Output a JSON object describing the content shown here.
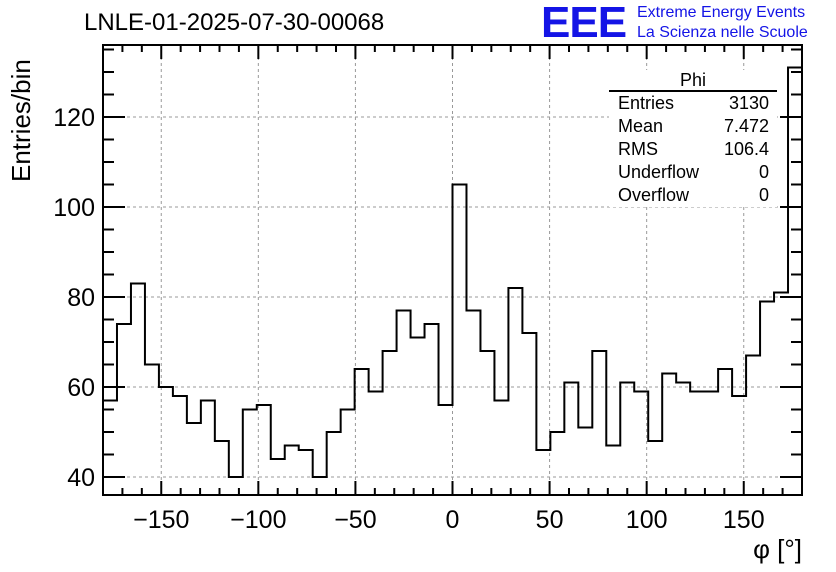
{
  "title": "LNLE-01-2025-07-30-00068",
  "logo": {
    "mark": "EEE",
    "line1": "Extreme Energy Events",
    "line2": "La Scienza nelle Scuole",
    "color": "#1414e6"
  },
  "stats": {
    "name": "Phi",
    "rows": [
      {
        "label": "Entries",
        "value": "3130"
      },
      {
        "label": "Mean",
        "value": "7.472"
      },
      {
        "label": "RMS",
        "value": "106.4"
      },
      {
        "label": "Underflow",
        "value": "0"
      },
      {
        "label": "Overflow",
        "value": "0"
      }
    ]
  },
  "chart_data": {
    "type": "histogram",
    "title": "LNLE-01-2025-07-30-00068",
    "xlabel": "φ [°]",
    "ylabel": "Entries/bin",
    "xlim": [
      -180,
      180
    ],
    "ylim": [
      36,
      136
    ],
    "grid": true,
    "bin_width": 7.2,
    "bin_edges_start": -180,
    "xticks": [
      "−150",
      "−100",
      "−50",
      "0",
      "50",
      "100",
      "150"
    ],
    "xtick_values": [
      -150,
      -100,
      -50,
      0,
      50,
      100,
      150
    ],
    "yticks": [
      "40",
      "60",
      "80",
      "100",
      "120"
    ],
    "ytick_values": [
      40,
      60,
      80,
      100,
      120
    ],
    "values": [
      57,
      74,
      83,
      65,
      60,
      58,
      52,
      57,
      48,
      40,
      55,
      56,
      44,
      47,
      46,
      40,
      50,
      55,
      64,
      59,
      68,
      77,
      71,
      74,
      56,
      105,
      77,
      68,
      57,
      82,
      72,
      46,
      50,
      61,
      51,
      68,
      47,
      61,
      59,
      48,
      63,
      61,
      59,
      59,
      64,
      58,
      67,
      79,
      81,
      131
    ],
    "line_color": "#000000"
  }
}
